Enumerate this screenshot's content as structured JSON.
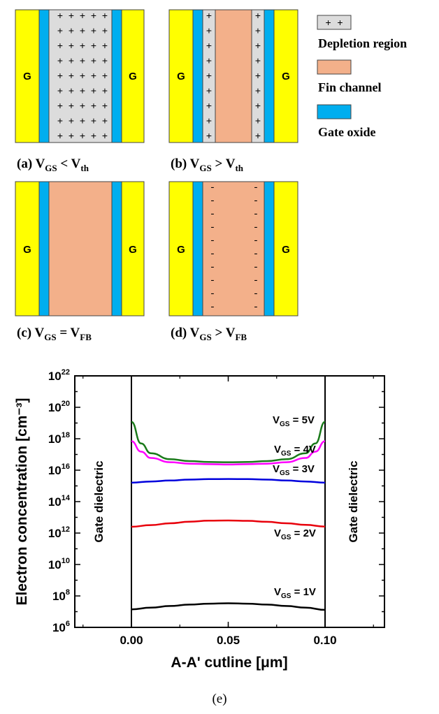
{
  "panels": {
    "gate_label": "G",
    "a": {
      "caption": [
        "(a) ",
        "V",
        "GS",
        " < V",
        "th"
      ]
    },
    "b": {
      "caption": [
        "(b) ",
        "V",
        "GS",
        " > V",
        "th"
      ]
    },
    "c": {
      "caption": [
        "(c) ",
        "V",
        "GS",
        " = V",
        "FB"
      ]
    },
    "d": {
      "caption": [
        "(d) ",
        "V",
        "GS",
        " > V",
        "FB"
      ]
    }
  },
  "legend": {
    "items": [
      {
        "label": "Depletion region",
        "swatch": "#dcdcdc",
        "symbol": "+ +"
      },
      {
        "label": "Fin channel",
        "swatch": "#f3b08a"
      },
      {
        "label": "Gate oxide",
        "swatch": "#00aeef"
      }
    ]
  },
  "colors": {
    "gate": "#ffff00",
    "oxide": "#00aeef",
    "channel": "#f3b08a",
    "depletion": "#dcdcdc"
  },
  "chart_data": {
    "type": "line",
    "xlabel": "A-A' cutline [μm]",
    "ylabel": "Electron concentration [cm⁻³]",
    "xlim": [
      -0.03,
      0.13
    ],
    "ylim": [
      1000000.0,
      1e+22
    ],
    "yscale": "log",
    "xticks": [
      "0.00",
      "0.05",
      "0.10"
    ],
    "yticks": [
      6,
      8,
      10,
      12,
      14,
      16,
      18,
      20,
      22
    ],
    "dielectric_label": "Gate dielectric",
    "series": [
      {
        "name": "VGS = 1V",
        "color": "#000000",
        "x": [
          0.0,
          0.01,
          0.02,
          0.03,
          0.04,
          0.05,
          0.06,
          0.07,
          0.08,
          0.09,
          0.1
        ],
        "y": [
          14000000.0,
          18000000.0,
          23000000.0,
          28000000.0,
          32000000.0,
          34000000.0,
          32000000.0,
          28000000.0,
          23000000.0,
          18000000.0,
          13000000.0
        ]
      },
      {
        "name": "VGS = 2V",
        "color": "#e8000b",
        "x": [
          0.0,
          0.01,
          0.02,
          0.03,
          0.04,
          0.05,
          0.06,
          0.07,
          0.08,
          0.09,
          0.1
        ],
        "y": [
          2500000000000.0,
          3200000000000.0,
          4200000000000.0,
          5300000000000.0,
          6100000000000.0,
          6300000000000.0,
          6000000000000.0,
          5200000000000.0,
          4200000000000.0,
          3300000000000.0,
          2600000000000.0
        ]
      },
      {
        "name": "VGS = 3V",
        "color": "#0000dd",
        "x": [
          0.0,
          0.01,
          0.02,
          0.03,
          0.04,
          0.05,
          0.06,
          0.07,
          0.08,
          0.09,
          0.1
        ],
        "y": [
          1600000000000000.0,
          1900000000000000.0,
          2200000000000000.0,
          2500000000000000.0,
          2700000000000000.0,
          2750000000000000.0,
          2700000000000000.0,
          2500000000000000.0,
          2200000000000000.0,
          1900000000000000.0,
          1600000000000000.0
        ]
      },
      {
        "name": "VGS = 4V",
        "color": "#ff00ff",
        "x": [
          0.0,
          0.005,
          0.01,
          0.02,
          0.03,
          0.04,
          0.05,
          0.06,
          0.07,
          0.08,
          0.09,
          0.095,
          0.1
        ],
        "y": [
          7e+17,
          1.5e+17,
          6e+16,
          3.2e+16,
          2.6e+16,
          2.4e+16,
          2.3e+16,
          2.4e+16,
          2.6e+16,
          3.2e+16,
          6e+16,
          1.5e+17,
          7e+17
        ]
      },
      {
        "name": "VGS = 5V",
        "color": "#1a7a1a",
        "x": [
          0.0,
          0.005,
          0.01,
          0.02,
          0.03,
          0.04,
          0.05,
          0.06,
          0.07,
          0.08,
          0.09,
          0.095,
          0.1
        ],
        "y": [
          1.2e+19,
          5e+17,
          1.2e+17,
          5e+16,
          3.8e+16,
          3.3e+16,
          3.2e+16,
          3.3e+16,
          3.8e+16,
          5e+16,
          1.2e+17,
          5e+17,
          1.2e+19
        ]
      }
    ],
    "series_labels": [
      {
        "prefix": "V",
        "sub": "GS",
        "suffix": " = 5V"
      },
      {
        "prefix": "V",
        "sub": "GS",
        "suffix": " = 4V"
      },
      {
        "prefix": "V",
        "sub": "GS",
        "suffix": " = 3V"
      },
      {
        "prefix": "V",
        "sub": "GS",
        "suffix": " = 2V"
      },
      {
        "prefix": "V",
        "sub": "GS",
        "suffix": " = 1V"
      }
    ]
  },
  "figure_caption": "(e)"
}
